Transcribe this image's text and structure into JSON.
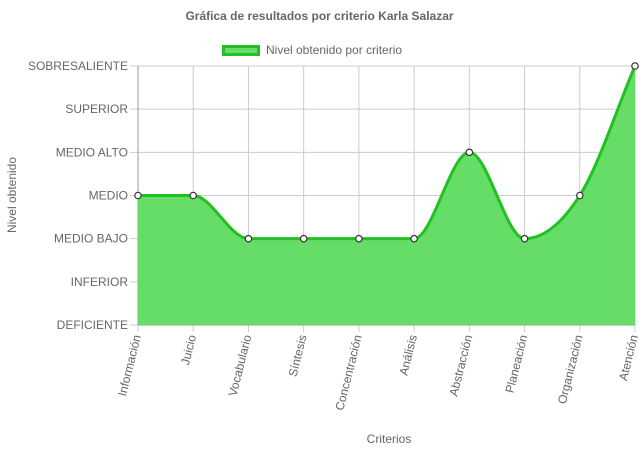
{
  "chart_data": {
    "type": "area",
    "title": "Gráfica de resultados por criterio Karla Salazar",
    "xlabel": "Criterios",
    "ylabel": "Nivel obtenido",
    "y_levels": [
      "DEFICIENTE",
      "INFERIOR",
      "MEDIO BAJO",
      "MEDIO",
      "MEDIO ALTO",
      "SUPERIOR",
      "SOBRESALIENTE"
    ],
    "ylim": [
      0,
      6
    ],
    "categories": [
      "Información",
      "Juicio",
      "Vocabulario",
      "Síntesis",
      "Concentración",
      "Análisis",
      "Abstracción",
      "Planeación",
      "Organización",
      "Atención"
    ],
    "series": [
      {
        "name": "Nivel obtenido por criterio",
        "values": [
          3,
          3,
          2,
          2,
          2,
          2,
          4,
          2,
          3,
          6
        ]
      }
    ],
    "grid": true,
    "legend": "top-center",
    "colors": {
      "line": "#22c022",
      "fill": "#66dd66",
      "point_fill": "#ffffff",
      "point_stroke": "#333333",
      "grid": "#cccccc",
      "axis": "#999999",
      "text": "#666666"
    }
  }
}
